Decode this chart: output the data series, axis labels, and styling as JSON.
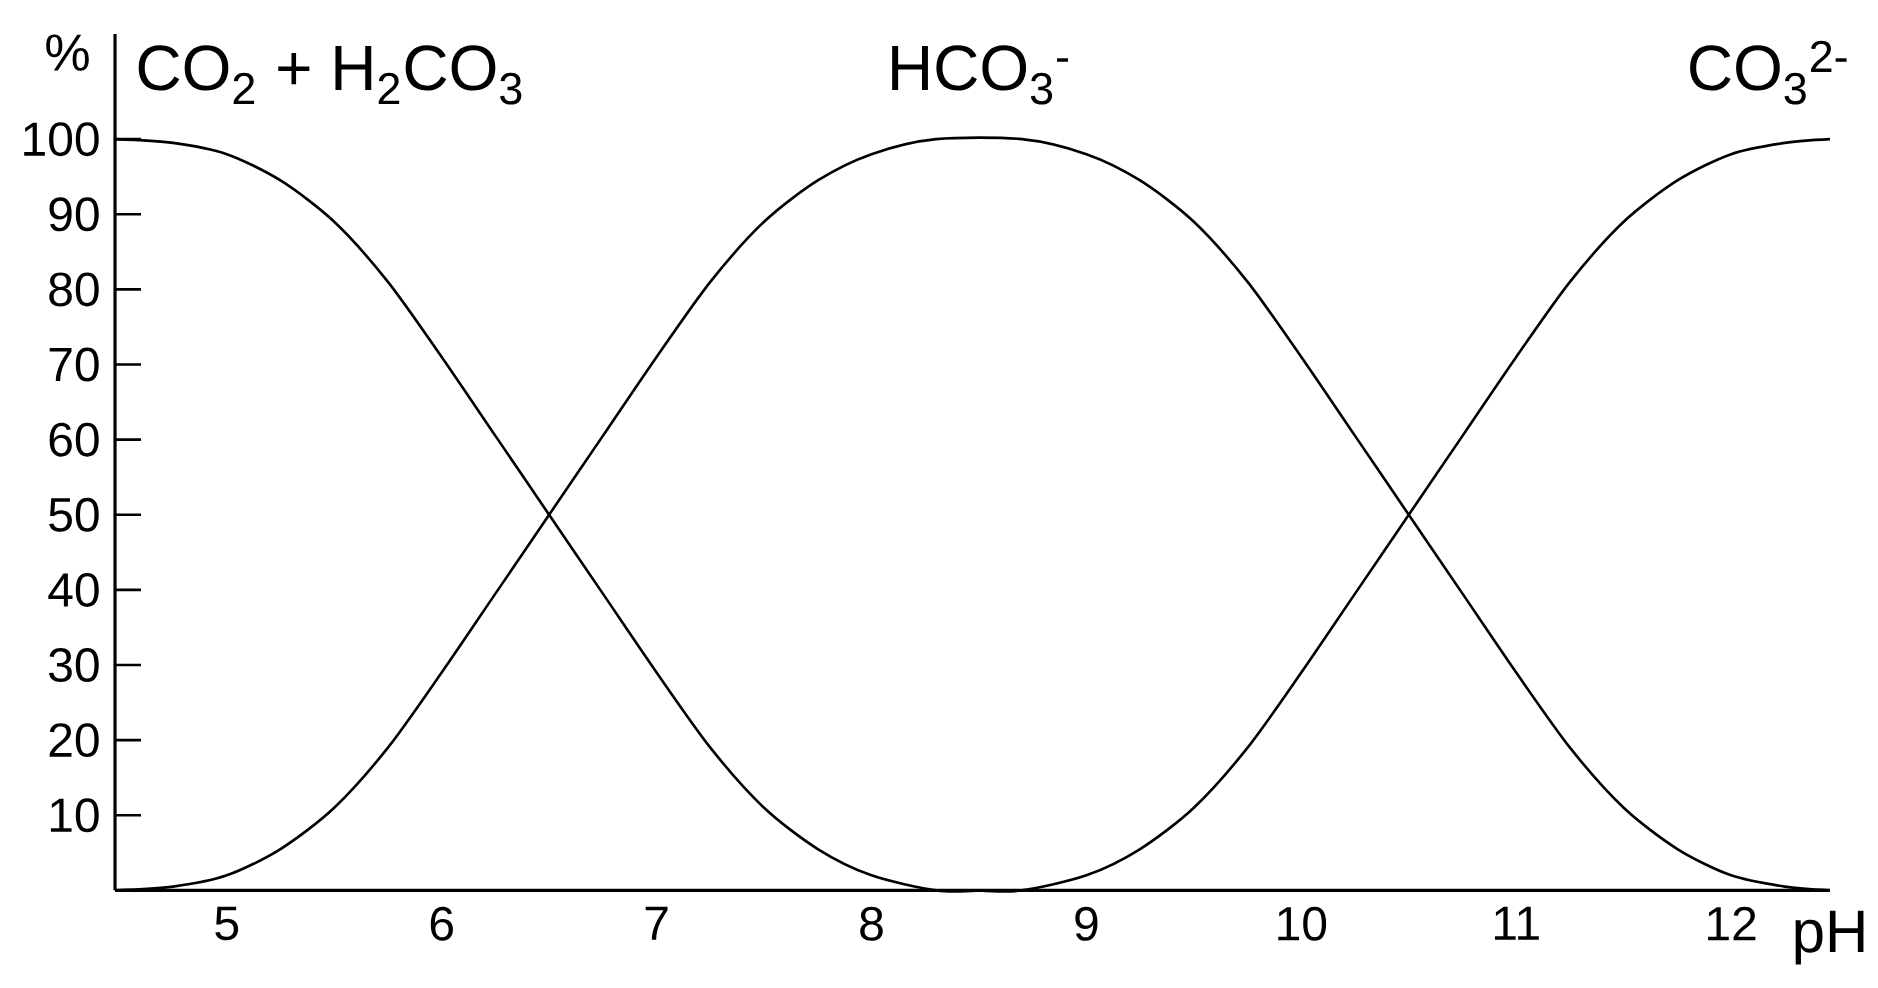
{
  "chart_data": {
    "type": "line",
    "xlabel": "pH",
    "ylabel": "%",
    "xlim": [
      4.48,
      12.46
    ],
    "ylim": [
      0,
      114
    ],
    "xticks": [
      5,
      6,
      7,
      8,
      9,
      10,
      11,
      12
    ],
    "yticks": [
      10,
      20,
      30,
      40,
      50,
      60,
      70,
      80,
      90,
      100
    ],
    "marker": "none",
    "line_style": "solid",
    "series": [
      {
        "name": "CO$_{2}$ + H$_{2}$CO$_{3}$",
        "color": "#000000",
        "x": [
          4.48,
          4.75,
          5,
          5.25,
          5.5,
          5.75,
          6,
          6.25,
          6.5,
          6.75,
          7,
          7.25,
          7.5,
          7.75,
          8,
          8.3,
          8.5
        ],
        "values": [
          100,
          99.5,
          98,
          94.5,
          89,
          81,
          71,
          60.5,
          50,
          39.5,
          29,
          19,
          11,
          5.5,
          2,
          0,
          0
        ]
      },
      {
        "name": "HCO$_{3}$$^{-}$",
        "color": "#000000",
        "x": [
          4.48,
          4.75,
          5,
          5.25,
          5.5,
          5.75,
          6,
          6.25,
          6.5,
          6.75,
          7,
          7.25,
          7.5,
          7.75,
          8,
          8.3,
          8.7,
          9,
          9.25,
          9.5,
          9.75,
          10,
          10.25,
          10.5,
          10.75,
          11,
          11.25,
          11.5,
          11.75,
          12,
          12.25,
          12.46
        ],
        "values": [
          0,
          0.5,
          2,
          5.5,
          11,
          19,
          29,
          39.5,
          50,
          60.5,
          71,
          81,
          89,
          94.5,
          98,
          100,
          100,
          98,
          94.5,
          89,
          81,
          71,
          60.5,
          50,
          39.5,
          29,
          19,
          11,
          5.5,
          2,
          0.5,
          0
        ]
      },
      {
        "name": "CO$_{3}$$^{2-}$",
        "color": "#000000",
        "x": [
          8.5,
          8.7,
          9,
          9.25,
          9.5,
          9.75,
          10,
          10.25,
          10.5,
          10.75,
          11,
          11.25,
          11.5,
          11.75,
          12,
          12.25,
          12.46
        ],
        "values": [
          0,
          0,
          2,
          5.5,
          11,
          19,
          29,
          39.5,
          50,
          60.5,
          71,
          81,
          89,
          94.5,
          98,
          99.5,
          100
        ]
      }
    ]
  }
}
